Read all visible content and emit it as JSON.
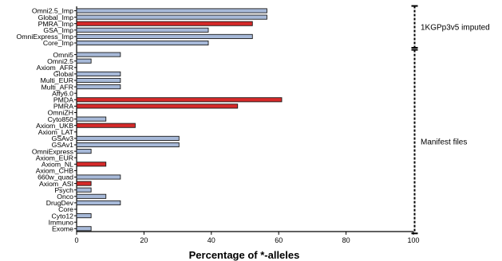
{
  "chart_data": {
    "type": "bar",
    "orientation": "horizontal",
    "xlabel": "Percentage of *-alleles",
    "xlim": [
      0,
      100
    ],
    "xticks": [
      0,
      20,
      40,
      60,
      80,
      100
    ],
    "grid": false,
    "colors": {
      "blue": "#a7b9d8",
      "red": "#d62a2a",
      "edge": "#1a1a1a"
    },
    "groups": [
      {
        "label": "1KGPp3v5 imputed",
        "bars": [
          {
            "category": "Omni2.5_Imp",
            "value": 56.5,
            "color": "blue"
          },
          {
            "category": "Global_Imp",
            "value": 56.5,
            "color": "blue"
          },
          {
            "category": "PMRA_Imp",
            "value": 52.2,
            "color": "red"
          },
          {
            "category": "GSA_Imp",
            "value": 39.1,
            "color": "blue"
          },
          {
            "category": "OmniExpress_Imp",
            "value": 52.2,
            "color": "blue"
          },
          {
            "category": "Core_Imp",
            "value": 39.1,
            "color": "blue"
          }
        ]
      },
      {
        "label": "Manifest files",
        "bars": [
          {
            "category": "Omni5",
            "value": 13.0,
            "color": "blue"
          },
          {
            "category": "Omni2.5",
            "value": 4.3,
            "color": "blue"
          },
          {
            "category": "Axiom_AFR",
            "value": 0,
            "color": "blue"
          },
          {
            "category": "Global",
            "value": 13.0,
            "color": "blue"
          },
          {
            "category": "Multi_EUR",
            "value": 13.0,
            "color": "blue"
          },
          {
            "category": "Multi_AFR",
            "value": 13.0,
            "color": "blue"
          },
          {
            "category": "Affy6.0",
            "value": 0,
            "color": "blue"
          },
          {
            "category": "PMDA",
            "value": 60.9,
            "color": "red"
          },
          {
            "category": "PMRA",
            "value": 47.8,
            "color": "red"
          },
          {
            "category": "OmniZH",
            "value": 0,
            "color": "blue"
          },
          {
            "category": "Cyto850",
            "value": 8.7,
            "color": "blue"
          },
          {
            "category": "Axiom_UKB",
            "value": 17.4,
            "color": "red"
          },
          {
            "category": "Axiom_LAT",
            "value": 0,
            "color": "blue"
          },
          {
            "category": "GSAv3",
            "value": 30.4,
            "color": "blue"
          },
          {
            "category": "GSAv1",
            "value": 30.4,
            "color": "blue"
          },
          {
            "category": "OmniExpress",
            "value": 4.3,
            "color": "blue"
          },
          {
            "category": "Axiom_EUR",
            "value": 0,
            "color": "blue"
          },
          {
            "category": "Axiom_NL",
            "value": 8.7,
            "color": "red"
          },
          {
            "category": "Axiom_CHB",
            "value": 0,
            "color": "blue"
          },
          {
            "category": "660w_quad",
            "value": 13.0,
            "color": "blue"
          },
          {
            "category": "Axiom_ASI",
            "value": 4.3,
            "color": "red"
          },
          {
            "category": "Psych",
            "value": 4.3,
            "color": "blue"
          },
          {
            "category": "Onco",
            "value": 8.7,
            "color": "blue"
          },
          {
            "category": "DrugDev",
            "value": 13.0,
            "color": "blue"
          },
          {
            "category": "Core",
            "value": 0,
            "color": "blue"
          },
          {
            "category": "Cyto12",
            "value": 4.3,
            "color": "blue"
          },
          {
            "category": "Immuno",
            "value": 0,
            "color": "blue"
          },
          {
            "category": "Exome",
            "value": 4.3,
            "color": "blue"
          }
        ]
      }
    ]
  }
}
